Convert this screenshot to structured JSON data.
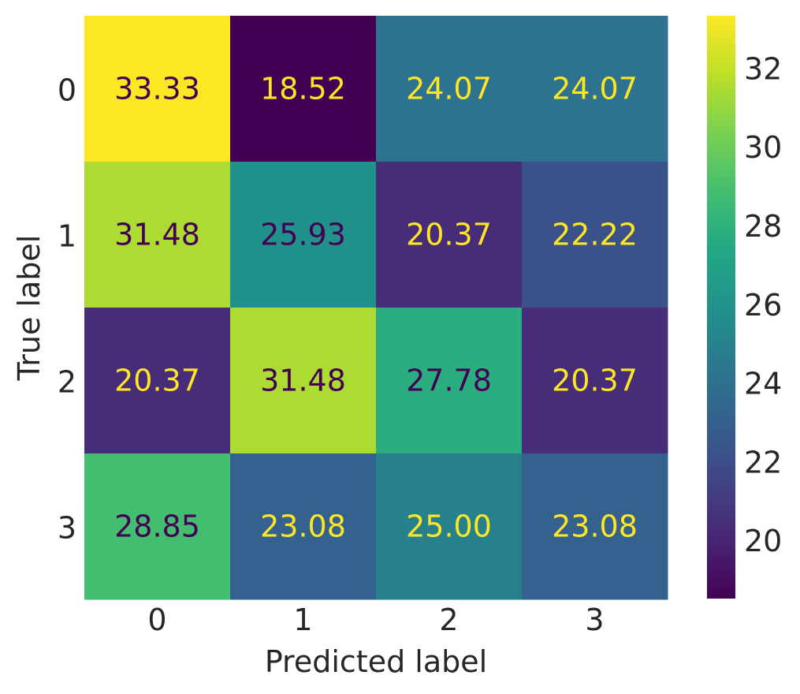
{
  "chart_data": {
    "type": "heatmap",
    "title": "",
    "xlabel": "Predicted label",
    "ylabel": "True label",
    "x_categories": [
      "0",
      "1",
      "2",
      "3"
    ],
    "y_categories": [
      "0",
      "1",
      "2",
      "3"
    ],
    "values": [
      [
        33.33,
        18.52,
        24.07,
        24.07
      ],
      [
        31.48,
        25.93,
        20.37,
        22.22
      ],
      [
        20.37,
        31.48,
        27.78,
        20.37
      ],
      [
        28.85,
        23.08,
        25.0,
        23.08
      ]
    ],
    "value_format": "2 decimals",
    "colormap": "viridis",
    "colorbar": {
      "range": [
        18.52,
        33.33
      ],
      "ticks": [
        20,
        22,
        24,
        26,
        28,
        30,
        32
      ]
    },
    "grid": false,
    "text_colors": {
      "dark": "#440154",
      "light": "#fde725"
    }
  }
}
